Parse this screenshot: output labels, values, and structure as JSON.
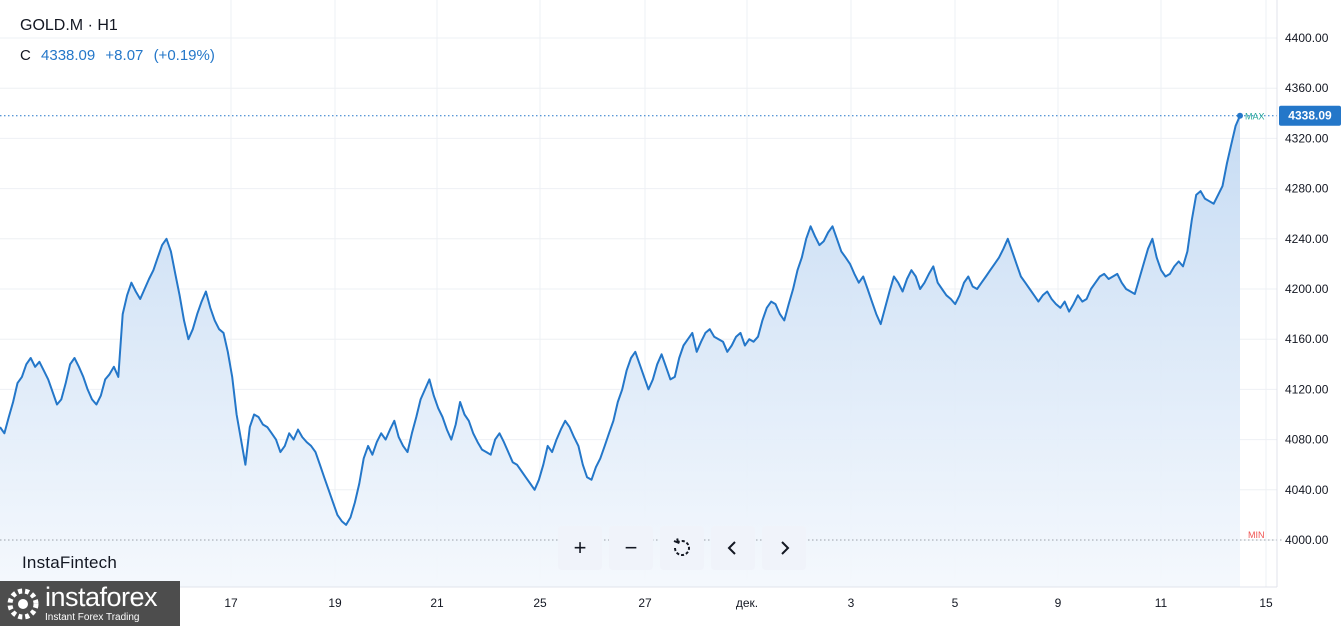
{
  "header": {
    "title": "GOLD.M · H1",
    "close_label": "C",
    "close_value": "4338.09",
    "change": "+8.07",
    "change_pct": "(+0.19%)"
  },
  "watermark": "InstaFintech",
  "logo": {
    "name": "instaforex",
    "sub": "Instant Forex Trading"
  },
  "toolbar": {
    "zoom_in": "+",
    "zoom_out": "−",
    "reset": "reset",
    "back": "‹",
    "forward": "›"
  },
  "colors": {
    "line": "#2477c9",
    "fill_top": "#c4daf3",
    "fill_bottom": "#f4f8fd",
    "max": "#26a69a",
    "min": "#ef5350",
    "price_tag": "#2477c9"
  },
  "chart_data": {
    "type": "area",
    "title": "GOLD.M · H1",
    "xlabel": "",
    "ylabel": "",
    "ylim": [
      3960,
      4420
    ],
    "grid": true,
    "y_ticks": [
      4000,
      4040,
      4080,
      4120,
      4160,
      4200,
      4240,
      4280,
      4320,
      4360,
      4400
    ],
    "y_tick_labels": [
      "4000.00",
      "4040.00",
      "4080.00",
      "4120.00",
      "4160.00",
      "4200.00",
      "4240.00",
      "4280.00",
      "4320.00",
      "4360.00",
      "4400.00"
    ],
    "x_tick_labels": [
      "17",
      "19",
      "21",
      "25",
      "27",
      "дек.",
      "3",
      "5",
      "9",
      "11",
      "15"
    ],
    "last_price_label": "4338.09",
    "max_label": "MAX",
    "min_label": "MIN",
    "max_value": 4338.09,
    "min_value": 4000,
    "series": [
      {
        "values": [
          4090,
          4085,
          4098,
          4110,
          4125,
          4130,
          4140,
          4145,
          4138,
          4142,
          4135,
          4128,
          4118,
          4108,
          4112,
          4125,
          4140,
          4145,
          4138,
          4130,
          4120,
          4112,
          4108,
          4115,
          4128,
          4132,
          4138,
          4130,
          4180,
          4195,
          4205,
          4198,
          4192,
          4200,
          4208,
          4215,
          4225,
          4235,
          4240,
          4230,
          4212,
          4195,
          4175,
          4160,
          4168,
          4180,
          4190,
          4198,
          4185,
          4175,
          4168,
          4165,
          4150,
          4130,
          4100,
          4080,
          4060,
          4090,
          4100,
          4098,
          4092,
          4090,
          4085,
          4080,
          4070,
          4075,
          4085,
          4080,
          4088,
          4082,
          4078,
          4075,
          4070,
          4060,
          4050,
          4040,
          4030,
          4020,
          4015,
          4012,
          4018,
          4030,
          4045,
          4065,
          4075,
          4068,
          4078,
          4085,
          4080,
          4088,
          4095,
          4082,
          4075,
          4070,
          4085,
          4098,
          4112,
          4120,
          4128,
          4115,
          4105,
          4098,
          4088,
          4080,
          4092,
          4110,
          4100,
          4095,
          4085,
          4078,
          4072,
          4070,
          4068,
          4080,
          4085,
          4078,
          4070,
          4062,
          4060,
          4055,
          4050,
          4045,
          4040,
          4048,
          4060,
          4075,
          4070,
          4080,
          4088,
          4095,
          4090,
          4082,
          4075,
          4060,
          4050,
          4048,
          4058,
          4065,
          4075,
          4085,
          4095,
          4110,
          4120,
          4135,
          4145,
          4150,
          4140,
          4130,
          4120,
          4128,
          4140,
          4148,
          4138,
          4128,
          4130,
          4145,
          4155,
          4160,
          4165,
          4150,
          4158,
          4165,
          4168,
          4162,
          4160,
          4158,
          4150,
          4155,
          4162,
          4165,
          4155,
          4160,
          4158,
          4162,
          4175,
          4185,
          4190,
          4188,
          4180,
          4175,
          4188,
          4200,
          4215,
          4225,
          4240,
          4250,
          4242,
          4235,
          4238,
          4245,
          4250,
          4240,
          4230,
          4225,
          4220,
          4212,
          4205,
          4210,
          4200,
          4190,
          4180,
          4172,
          4185,
          4198,
          4210,
          4205,
          4198,
          4208,
          4215,
          4210,
          4200,
          4205,
          4212,
          4218,
          4205,
          4200,
          4195,
          4192,
          4188,
          4195,
          4205,
          4210,
          4202,
          4200,
          4205,
          4210,
          4215,
          4220,
          4225,
          4232,
          4240,
          4230,
          4220,
          4210,
          4205,
          4200,
          4195,
          4190,
          4195,
          4198,
          4192,
          4188,
          4185,
          4190,
          4182,
          4188,
          4195,
          4190,
          4192,
          4200,
          4205,
          4210,
          4212,
          4208,
          4210,
          4212,
          4205,
          4200,
          4198,
          4196,
          4208,
          4220,
          4232,
          4240,
          4225,
          4215,
          4210,
          4212,
          4218,
          4222,
          4218,
          4230,
          4255,
          4275,
          4278,
          4272,
          4270,
          4268,
          4275,
          4282,
          4300,
          4315,
          4330,
          4338.09
        ]
      }
    ]
  }
}
